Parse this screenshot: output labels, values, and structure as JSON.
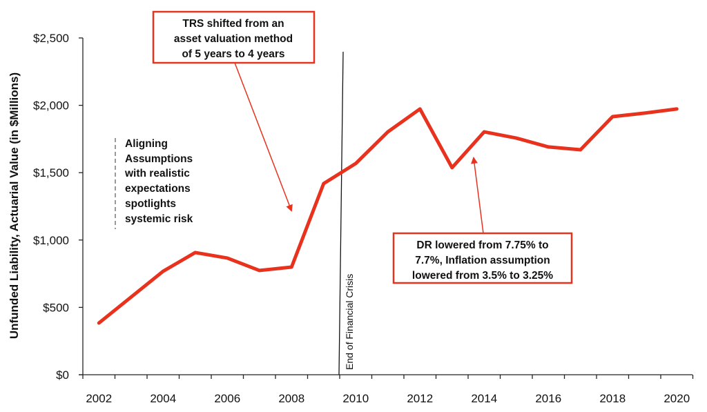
{
  "chart_data": {
    "type": "line",
    "title": "",
    "xlabel": "",
    "ylabel": "Unfunded Liability, Actuarial Value (in $Millions)",
    "ylim": [
      0,
      2500
    ],
    "yticks": [
      "$0",
      "$500",
      "$1,000",
      "$1,500",
      "$2,000",
      "$2,500"
    ],
    "ytick_values": [
      0,
      500,
      1000,
      1500,
      2000,
      2500
    ],
    "xticks": [
      "2002",
      "2004",
      "2006",
      "2008",
      "2010",
      "2012",
      "2014",
      "2016",
      "2018",
      "2020"
    ],
    "grid": false,
    "legend": "none",
    "line_color": "#e8321e",
    "x": [
      2002,
      2003,
      2004,
      2005,
      2006,
      2007,
      2008,
      2009,
      2010,
      2011,
      2012,
      2013,
      2014,
      2015,
      2016,
      2017,
      2018,
      2019,
      2020
    ],
    "values": [
      384,
      576,
      768,
      907,
      866,
      774,
      799,
      1419,
      1568,
      1803,
      1973,
      1537,
      1803,
      1757,
      1691,
      1670,
      1916,
      1942,
      1973
    ],
    "annotations": {
      "trs_box": [
        "TRS shifted from an",
        "asset valuation method",
        "of 5 years to 4 years"
      ],
      "dr_box": [
        "DR lowered from 7.75% to",
        "7.7%, Inflation assumption",
        "lowered from 3.5% to 3.25%"
      ],
      "aligning": [
        "Aligning",
        "Assumptions",
        "with realistic",
        "expectations",
        "spotlights",
        "systemic risk"
      ],
      "crisis_label": "End of Financial Crisis"
    }
  }
}
